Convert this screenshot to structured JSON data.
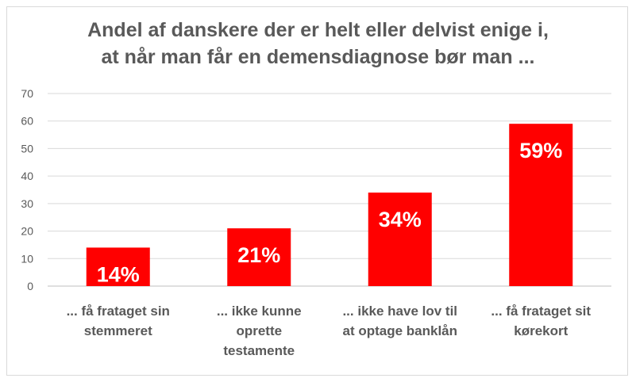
{
  "chart_data": {
    "type": "bar",
    "title": [
      "Andel af danskere der er helt eller delvist enige i,",
      "at når man får en demensdiagnose bør man ..."
    ],
    "categories": [
      [
        "... få frataget sin",
        "stemmeret"
      ],
      [
        "... ikke kunne",
        "oprette",
        "testamente"
      ],
      [
        "... ikke have lov til",
        "at optage banklån"
      ],
      [
        "... få frataget sit",
        "kørekort"
      ]
    ],
    "values": [
      14,
      21,
      34,
      59
    ],
    "data_labels": [
      "14%",
      "21%",
      "34%",
      "59%"
    ],
    "ylim": [
      0,
      70
    ],
    "yticks": [
      "0",
      "10",
      "20",
      "30",
      "40",
      "50",
      "60",
      "70"
    ],
    "grid": true,
    "bar_color": "#ff0000",
    "xlabel": "",
    "ylabel": ""
  }
}
